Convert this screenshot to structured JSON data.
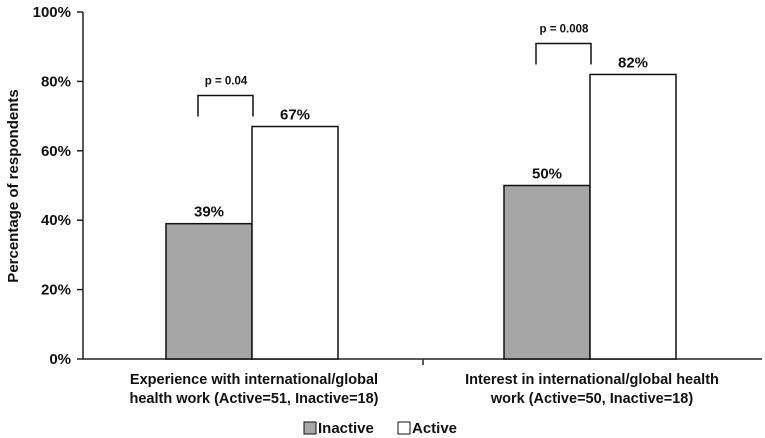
{
  "chart_data": {
    "type": "bar",
    "ylabel": "Percentage of respondents",
    "ylim": [
      0,
      100
    ],
    "yticks": [
      "0%",
      "20%",
      "40%",
      "60%",
      "80%",
      "100%"
    ],
    "categories": [
      {
        "line1": "Experience with international/global",
        "line2": "health work (Active=51, Inactive=18)"
      },
      {
        "line1": "Interest in international/global health",
        "line2": "work (Active=50, Inactive=18)"
      }
    ],
    "series": [
      {
        "name": "Inactive",
        "values": [
          39,
          50
        ],
        "labels": [
          "39%",
          "50%"
        ],
        "color": "#a6a6a6"
      },
      {
        "name": "Active",
        "values": [
          67,
          82
        ],
        "labels": [
          "67%",
          "82%"
        ],
        "color": "#ffffff"
      }
    ],
    "annotations": [
      "p = 0.04",
      "p = 0.008"
    ],
    "legend": "bottom"
  }
}
